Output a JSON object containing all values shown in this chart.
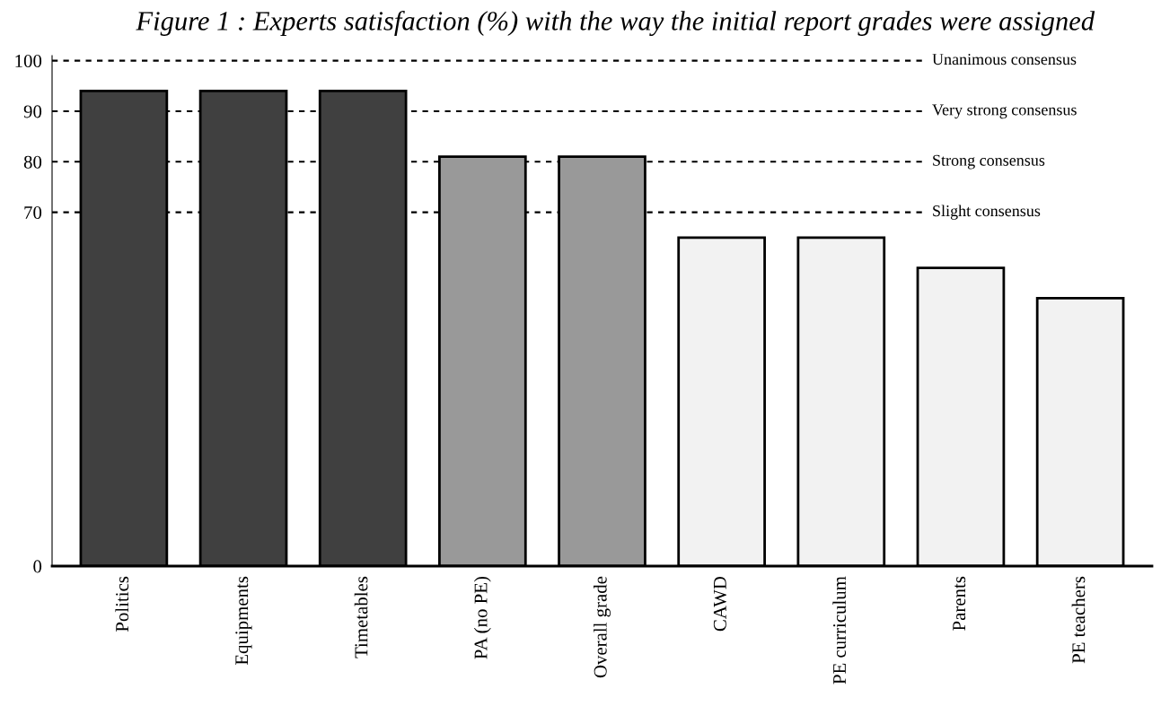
{
  "chart_data": {
    "type": "bar",
    "title": "Figure 1 : Experts satisfaction (%) with the way the initial report grades were assigned",
    "categories": [
      "Politics",
      "Equipments",
      "Timetables",
      "PA (no PE)",
      "Overall grade",
      "CAWD",
      "PE curriculum",
      "Parents",
      "PE teachers"
    ],
    "values": [
      94,
      94,
      94,
      81,
      81,
      65,
      65,
      59,
      53
    ],
    "colors": [
      "#404040",
      "#404040",
      "#404040",
      "#999999",
      "#999999",
      "#f2f2f2",
      "#f2f2f2",
      "#f2f2f2",
      "#f2f2f2"
    ],
    "ylim": [
      0,
      101
    ],
    "yticks": [
      0,
      70,
      80,
      90,
      100
    ],
    "grid": false,
    "ref_lines": [
      {
        "axis": "y",
        "value": 100,
        "label": "Unanimous consensus",
        "color": "#000000",
        "line_style": "dashed"
      },
      {
        "axis": "y",
        "value": 90,
        "label": "Very strong consensus",
        "color": "#000000",
        "line_style": "dashed"
      },
      {
        "axis": "y",
        "value": 80,
        "label": "Strong consensus",
        "color": "#000000",
        "line_style": "dashed"
      },
      {
        "axis": "y",
        "value": 70,
        "label": "Slight consensus",
        "color": "#000000",
        "line_style": "dashed"
      }
    ]
  }
}
